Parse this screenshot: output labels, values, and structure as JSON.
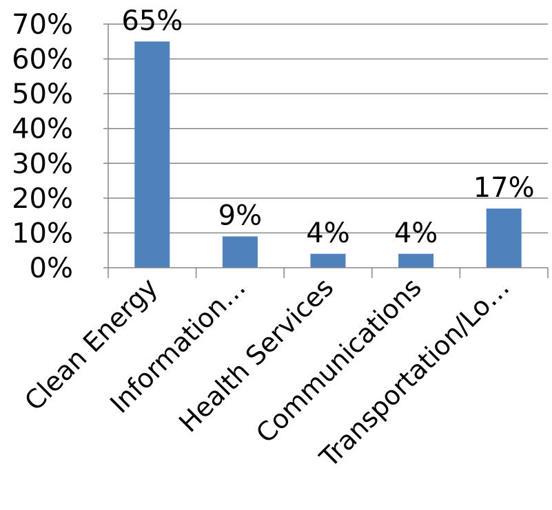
{
  "colors": {
    "bar": "#4f81bd",
    "gridline": "#868686",
    "axis": "#868686",
    "text": "#000000",
    "background": "#ffffff"
  },
  "chart_data": {
    "type": "bar",
    "title": "",
    "xlabel": "",
    "ylabel": "",
    "categories": [
      "Clean Energy",
      "Information…",
      "Health Services",
      "Communications",
      "Transportation/Lo…"
    ],
    "values": [
      65,
      9,
      4,
      4,
      17
    ],
    "data_labels": [
      "65%",
      "9%",
      "4%",
      "4%",
      "17%"
    ],
    "ylim": [
      0,
      70
    ],
    "y_ticks": [
      0,
      10,
      20,
      30,
      40,
      50,
      60,
      70
    ],
    "y_tick_labels": [
      "0%",
      "10%",
      "20%",
      "30%",
      "40%",
      "50%",
      "60%",
      "70%"
    ],
    "grid": true,
    "legend": "none"
  }
}
